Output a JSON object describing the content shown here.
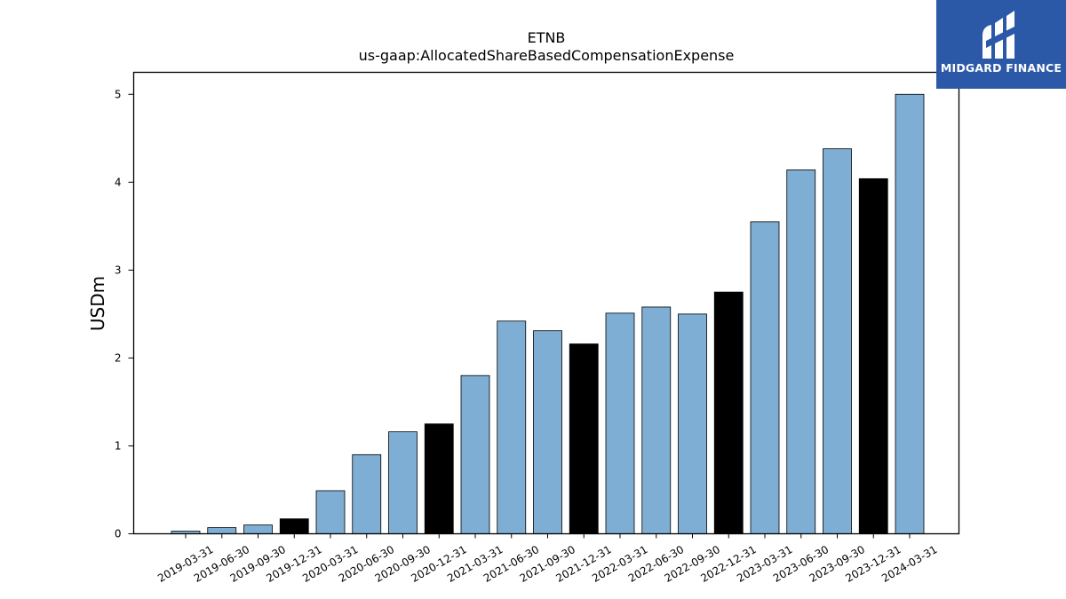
{
  "chart_data": {
    "type": "bar",
    "title": "ETNB",
    "subtitle": "us-gaap:AllocatedShareBasedCompensationExpense",
    "xlabel": "",
    "ylabel": "USDm",
    "ylim": [
      0,
      5.25
    ],
    "yticks": [
      0,
      1,
      2,
      3,
      4,
      5
    ],
    "grid": false,
    "categories": [
      "2019-03-31",
      "2019-06-30",
      "2019-09-30",
      "2019-12-31",
      "2020-03-31",
      "2020-06-30",
      "2020-09-30",
      "2020-12-31",
      "2021-03-31",
      "2021-06-30",
      "2021-09-30",
      "2021-12-31",
      "2022-03-31",
      "2022-06-30",
      "2022-09-30",
      "2022-12-31",
      "2023-03-31",
      "2023-06-30",
      "2023-09-30",
      "2023-12-31",
      "2024-03-31"
    ],
    "values": [
      0.03,
      0.07,
      0.1,
      0.17,
      0.49,
      0.9,
      1.16,
      1.25,
      1.8,
      2.42,
      2.31,
      2.16,
      2.51,
      2.58,
      2.5,
      2.75,
      3.55,
      4.14,
      4.38,
      4.04,
      5.0
    ],
    "bar_colors": {
      "quarter": "#7eaed3",
      "year_end": "#000000"
    }
  },
  "logo": {
    "text": "MIDGARD FINANCE",
    "icon": "midgard-logo-icon",
    "background": "#2b59a8"
  }
}
